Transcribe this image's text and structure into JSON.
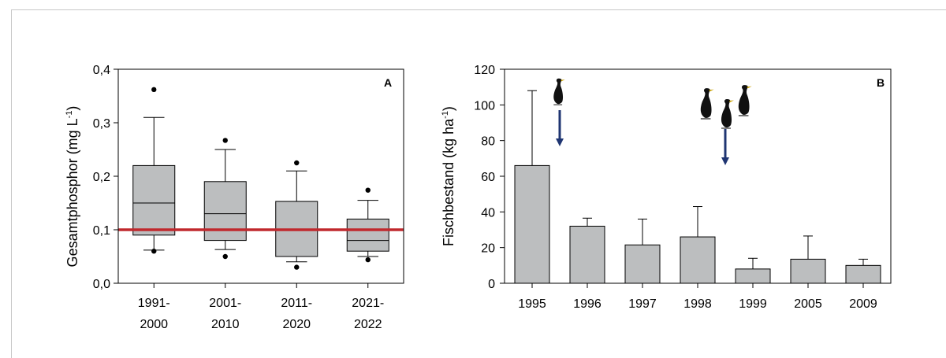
{
  "chart_data": [
    {
      "type": "box",
      "panel_label": "A",
      "ylabel": "Gesamtphosphor (mg L",
      "ylabel_unit_sup": "-1",
      "ylabel_close": ")",
      "ylim": [
        0,
        0.4
      ],
      "yticks": [
        0.0,
        0.1,
        0.2,
        0.3,
        0.4
      ],
      "ytick_labels": [
        "0,0",
        "0,1",
        "0,2",
        "0,3",
        "0,4"
      ],
      "categories": [
        {
          "line1": "1991-",
          "line2": "2000"
        },
        {
          "line1": "2001-",
          "line2": "2010"
        },
        {
          "line1": "2011-",
          "line2": "2020"
        },
        {
          "line1": "2021-",
          "line2": "2022"
        }
      ],
      "boxes": [
        {
          "whisker_low": 0.062,
          "q1": 0.09,
          "median": 0.15,
          "q3": 0.22,
          "whisker_high": 0.31,
          "outliers": [
            0.06,
            0.362
          ]
        },
        {
          "whisker_low": 0.063,
          "q1": 0.08,
          "median": 0.13,
          "q3": 0.19,
          "whisker_high": 0.25,
          "outliers": [
            0.05,
            0.267
          ]
        },
        {
          "whisker_low": 0.04,
          "q1": 0.05,
          "median": 0.153,
          "q3": 0.153,
          "whisker_high": 0.21,
          "outliers": [
            0.03,
            0.225
          ]
        },
        {
          "whisker_low": 0.05,
          "q1": 0.06,
          "median": 0.08,
          "q3": 0.12,
          "whisker_high": 0.155,
          "outliers": [
            0.044,
            0.174
          ]
        }
      ],
      "reference_line": {
        "value": 0.1,
        "color": "#c0282d"
      },
      "box_color": "#bcbebf"
    },
    {
      "type": "bar",
      "panel_label": "B",
      "ylabel": "Fischbestand (kg ha",
      "ylabel_unit_sup": "-1",
      "ylabel_close": ")",
      "ylim": [
        0,
        120
      ],
      "yticks": [
        0,
        20,
        40,
        60,
        80,
        100,
        120
      ],
      "ytick_labels": [
        "0",
        "20",
        "40",
        "60",
        "80",
        "100",
        "120"
      ],
      "categories": [
        "1995",
        "1996",
        "1997",
        "1998",
        "1999",
        "2005",
        "2009"
      ],
      "values": [
        66,
        32,
        21.5,
        26,
        8,
        13.5,
        10
      ],
      "error_upper": [
        108,
        36.5,
        36,
        43,
        14,
        26.5,
        13.5
      ],
      "bar_color": "#bcbebf",
      "annotations": [
        {
          "kind": "cormorant",
          "count": 1,
          "after_category": "1995",
          "arrow_color": "#1f3572"
        },
        {
          "kind": "cormorant",
          "count": 3,
          "after_category": "1998",
          "arrow_color": "#1f3572"
        }
      ]
    }
  ]
}
